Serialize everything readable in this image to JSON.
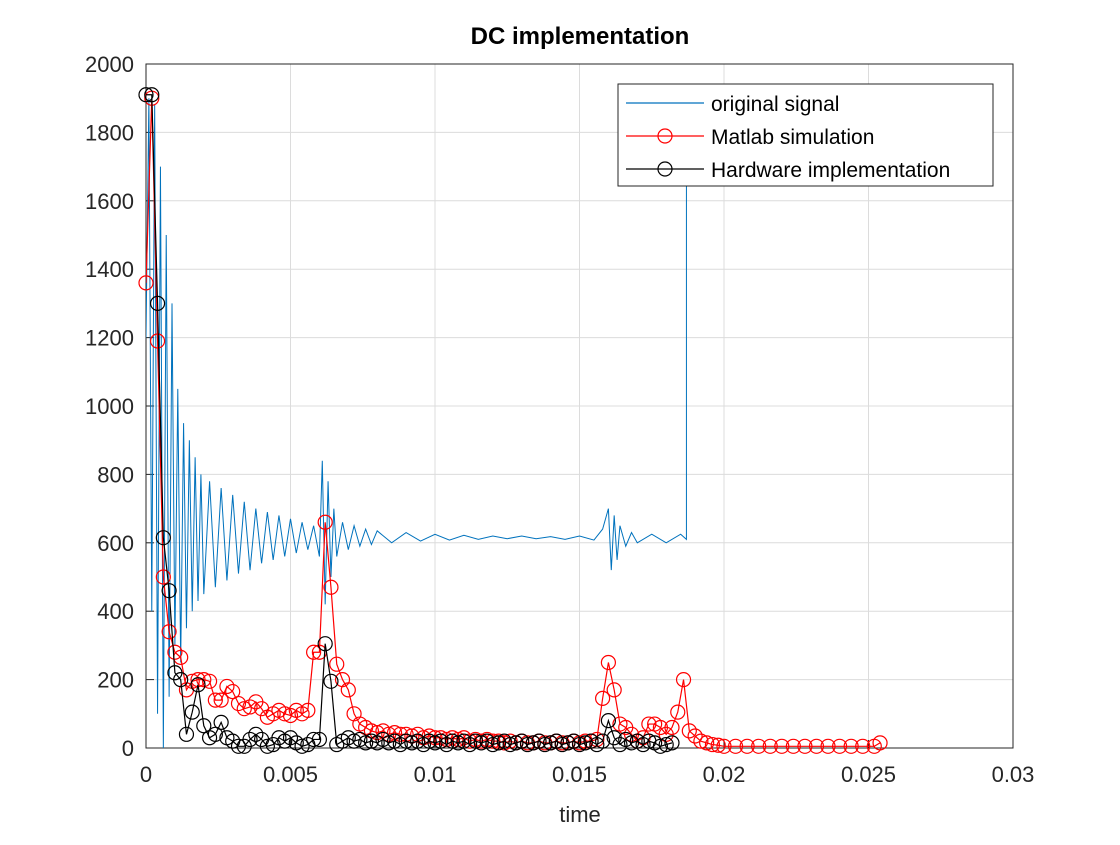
{
  "chart_data": {
    "type": "line",
    "title": "DC implementation",
    "x_label": "time",
    "xlim": [
      0,
      0.03
    ],
    "ylim": [
      0,
      2000
    ],
    "xticks": [
      0,
      0.005,
      0.01,
      0.015,
      0.02,
      0.025,
      0.03
    ],
    "yticks": [
      0,
      200,
      400,
      600,
      800,
      1000,
      1200,
      1400,
      1600,
      1800,
      2000
    ],
    "grid": true,
    "legend": "northeast",
    "series": [
      {
        "name": "original signal",
        "color": "#0072bd",
        "marker": "none",
        "x": [
          0,
          0.0001,
          0.0002,
          0.0003,
          0.0004,
          0.0005,
          0.0006,
          0.0007,
          0.0008,
          0.0009,
          0.001,
          0.0011,
          0.0012,
          0.0013,
          0.0014,
          0.0015,
          0.0016,
          0.0017,
          0.0018,
          0.0019,
          0.002,
          0.0022,
          0.0024,
          0.0026,
          0.0028,
          0.003,
          0.0032,
          0.0034,
          0.0036,
          0.0038,
          0.004,
          0.0042,
          0.0044,
          0.0046,
          0.0048,
          0.005,
          0.0052,
          0.0054,
          0.0056,
          0.0058,
          0.006,
          0.0061,
          0.0062,
          0.0063,
          0.0064,
          0.0065,
          0.0066,
          0.0068,
          0.007,
          0.0072,
          0.0074,
          0.0076,
          0.0078,
          0.008,
          0.0085,
          0.009,
          0.0095,
          0.01,
          0.0105,
          0.011,
          0.0115,
          0.012,
          0.0125,
          0.013,
          0.0135,
          0.014,
          0.0145,
          0.015,
          0.0155,
          0.0158,
          0.016,
          0.0161,
          0.0162,
          0.0163,
          0.0164,
          0.0166,
          0.0168,
          0.017,
          0.0175,
          0.018,
          0.0185,
          0.0187,
          0.0187
        ],
        "values": [
          1200,
          1900,
          400,
          1880,
          100,
          1700,
          0,
          1500,
          150,
          1300,
          300,
          1050,
          250,
          950,
          350,
          900,
          400,
          850,
          430,
          800,
          450,
          780,
          470,
          760,
          490,
          740,
          510,
          720,
          520,
          700,
          540,
          690,
          550,
          680,
          560,
          670,
          570,
          660,
          580,
          650,
          560,
          840,
          420,
          780,
          500,
          700,
          560,
          660,
          580,
          650,
          590,
          640,
          595,
          635,
          600,
          630,
          605,
          625,
          608,
          622,
          610,
          620,
          612,
          620,
          612,
          618,
          610,
          620,
          608,
          640,
          700,
          520,
          680,
          550,
          650,
          590,
          630,
          600,
          625,
          600,
          625,
          610,
          1900
        ]
      },
      {
        "name": "Matlab simulation",
        "color": "#ff0000",
        "marker": "circle",
        "x": [
          0,
          0.0002,
          0.0004,
          0.0006,
          0.0008,
          0.001,
          0.0012,
          0.0014,
          0.0016,
          0.0018,
          0.002,
          0.0022,
          0.0024,
          0.0026,
          0.0028,
          0.003,
          0.0032,
          0.0034,
          0.0036,
          0.0038,
          0.004,
          0.0042,
          0.0044,
          0.0046,
          0.0048,
          0.005,
          0.0052,
          0.0054,
          0.0056,
          0.0058,
          0.006,
          0.0062,
          0.0064,
          0.0066,
          0.0068,
          0.007,
          0.0072,
          0.0074,
          0.0076,
          0.0078,
          0.008,
          0.0082,
          0.0084,
          0.0086,
          0.0088,
          0.009,
          0.0092,
          0.0094,
          0.0096,
          0.0098,
          0.01,
          0.0102,
          0.0104,
          0.0106,
          0.0108,
          0.011,
          0.0112,
          0.0114,
          0.0116,
          0.0118,
          0.012,
          0.0122,
          0.0124,
          0.0126,
          0.0128,
          0.013,
          0.0132,
          0.0134,
          0.0136,
          0.0138,
          0.014,
          0.0142,
          0.0144,
          0.0146,
          0.0148,
          0.015,
          0.0152,
          0.0154,
          0.0156,
          0.0158,
          0.016,
          0.0162,
          0.0164,
          0.0166,
          0.0168,
          0.017,
          0.0172,
          0.0174,
          0.0176,
          0.0178,
          0.018,
          0.0182,
          0.0184,
          0.0186,
          0.0188,
          0.019,
          0.0192,
          0.0194,
          0.0196,
          0.0198,
          0.02,
          0.0204,
          0.0208,
          0.0212,
          0.0216,
          0.022,
          0.0224,
          0.0228,
          0.0232,
          0.0236,
          0.024,
          0.0244,
          0.0248,
          0.0252,
          0.0254
        ],
        "values": [
          1360,
          1900,
          1190,
          500,
          340,
          280,
          265,
          170,
          195,
          200,
          200,
          195,
          140,
          140,
          180,
          165,
          130,
          115,
          120,
          135,
          115,
          90,
          100,
          110,
          100,
          95,
          110,
          100,
          110,
          280,
          280,
          660,
          470,
          245,
          200,
          170,
          100,
          70,
          60,
          50,
          45,
          50,
          40,
          45,
          40,
          40,
          35,
          40,
          30,
          35,
          30,
          30,
          25,
          30,
          25,
          30,
          20,
          25,
          20,
          25,
          20,
          20,
          15,
          20,
          15,
          20,
          15,
          15,
          20,
          15,
          15,
          20,
          15,
          15,
          20,
          15,
          20,
          20,
          25,
          145,
          250,
          170,
          70,
          60,
          40,
          20,
          30,
          70,
          70,
          60,
          40,
          60,
          105,
          200,
          50,
          35,
          20,
          15,
          10,
          8,
          5,
          5,
          5,
          5,
          5,
          5,
          5,
          5,
          5,
          5,
          5,
          5,
          5,
          5,
          15
        ]
      },
      {
        "name": "Hardware implementation",
        "color": "#000000",
        "marker": "circle",
        "x": [
          0,
          0.0002,
          0.0004,
          0.0006,
          0.0008,
          0.001,
          0.0012,
          0.0014,
          0.0016,
          0.0018,
          0.002,
          0.0022,
          0.0024,
          0.0026,
          0.0028,
          0.003,
          0.0032,
          0.0034,
          0.0036,
          0.0038,
          0.004,
          0.0042,
          0.0044,
          0.0046,
          0.0048,
          0.005,
          0.0052,
          0.0054,
          0.0056,
          0.0058,
          0.006,
          0.0062,
          0.0064,
          0.0066,
          0.0068,
          0.007,
          0.0072,
          0.0074,
          0.0076,
          0.0078,
          0.008,
          0.0082,
          0.0084,
          0.0086,
          0.0088,
          0.009,
          0.0092,
          0.0094,
          0.0096,
          0.0098,
          0.01,
          0.0102,
          0.0104,
          0.0106,
          0.0108,
          0.011,
          0.0112,
          0.0114,
          0.0116,
          0.0118,
          0.012,
          0.0122,
          0.0124,
          0.0126,
          0.0128,
          0.013,
          0.0132,
          0.0134,
          0.0136,
          0.0138,
          0.014,
          0.0142,
          0.0144,
          0.0146,
          0.0148,
          0.015,
          0.0152,
          0.0154,
          0.0156,
          0.0158,
          0.016,
          0.0162,
          0.0164,
          0.0166,
          0.0168,
          0.017,
          0.0172,
          0.0174,
          0.0176,
          0.0178,
          0.018,
          0.0182
        ],
        "values": [
          1910,
          1910,
          1300,
          615,
          460,
          220,
          200,
          40,
          105,
          185,
          65,
          30,
          40,
          75,
          30,
          20,
          5,
          5,
          25,
          40,
          25,
          5,
          10,
          30,
          20,
          30,
          15,
          5,
          10,
          25,
          25,
          305,
          195,
          10,
          20,
          30,
          20,
          25,
          15,
          20,
          15,
          25,
          15,
          20,
          10,
          20,
          15,
          20,
          10,
          20,
          15,
          20,
          10,
          20,
          15,
          20,
          10,
          20,
          15,
          20,
          10,
          15,
          20,
          10,
          15,
          20,
          10,
          15,
          20,
          10,
          15,
          20,
          10,
          15,
          20,
          10,
          15,
          20,
          10,
          20,
          80,
          30,
          10,
          25,
          15,
          20,
          10,
          20,
          15,
          5,
          10,
          15
        ]
      }
    ]
  }
}
